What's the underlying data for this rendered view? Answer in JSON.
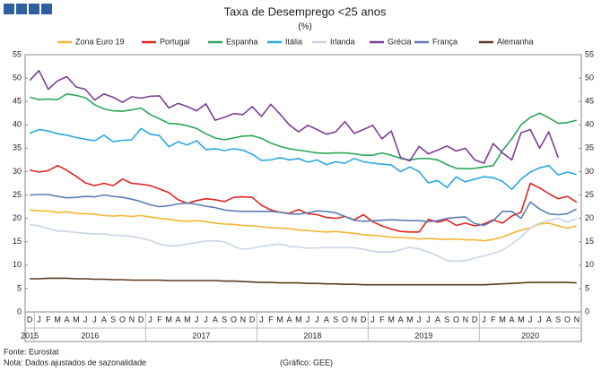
{
  "chart_data": {
    "type": "line",
    "title": "Taxa de Desemprego <25 anos",
    "subtitle": "(%)",
    "categories": [
      "D",
      "J",
      "F",
      "M",
      "A",
      "M",
      "J",
      "J",
      "A",
      "S",
      "O",
      "N",
      "D",
      "J",
      "F",
      "M",
      "A",
      "M",
      "J",
      "J",
      "A",
      "S",
      "O",
      "N",
      "D",
      "J",
      "F",
      "M",
      "A",
      "M",
      "J",
      "J",
      "A",
      "S",
      "O",
      "N",
      "D",
      "J",
      "F",
      "M",
      "A",
      "M",
      "J",
      "J",
      "A",
      "S",
      "O",
      "N",
      "D",
      "J",
      "F",
      "M",
      "A",
      "M",
      "J",
      "J",
      "A",
      "S",
      "O",
      "N"
    ],
    "years": [
      "2015",
      "2016",
      "2017",
      "2018",
      "2019",
      "2020"
    ],
    "ylim": [
      0,
      55
    ],
    "yticks": [
      0,
      5,
      10,
      15,
      20,
      25,
      30,
      35,
      40,
      45,
      50,
      55
    ],
    "grid": false,
    "legend": "top",
    "series": [
      {
        "name": "Zona Euro 19",
        "color": "#f2b632",
        "values": [
          21.8,
          21.6,
          21.6,
          21.3,
          21.4,
          21.1,
          21.0,
          20.9,
          20.6,
          20.5,
          20.6,
          20.4,
          20.6,
          20.3,
          20.0,
          19.8,
          19.5,
          19.4,
          19.5,
          19.3,
          19.0,
          18.8,
          18.7,
          18.5,
          18.4,
          18.2,
          18.0,
          17.9,
          17.8,
          17.5,
          17.4,
          17.2,
          17.1,
          17.2,
          17.0,
          16.8,
          16.5,
          16.4,
          16.2,
          16.0,
          15.9,
          15.8,
          15.6,
          15.7,
          15.6,
          15.5,
          15.6,
          15.4,
          15.4,
          15.2,
          15.5,
          16.0,
          16.8,
          17.5,
          18.0,
          18.8,
          19.0,
          18.4,
          17.9,
          18.4
        ]
      },
      {
        "name": "Portugal",
        "color": "#e02424",
        "values": [
          30.3,
          29.9,
          30.2,
          31.3,
          30.3,
          29.0,
          27.6,
          27.0,
          27.5,
          27.0,
          28.4,
          27.5,
          27.3,
          27.0,
          26.3,
          25.5,
          24.0,
          23.2,
          23.8,
          24.2,
          24.0,
          23.6,
          24.5,
          24.6,
          24.5,
          22.8,
          21.8,
          21.3,
          21.1,
          21.9,
          21.0,
          20.8,
          20.2,
          20.0,
          20.4,
          19.7,
          20.8,
          19.3,
          18.4,
          17.7,
          17.2,
          17.1,
          17.1,
          19.8,
          19.2,
          19.7,
          18.5,
          19.0,
          18.4,
          18.8,
          19.7,
          19.0,
          20.5,
          21.3,
          27.5,
          26.5,
          25.3,
          24.2,
          24.7,
          23.5
        ]
      },
      {
        "name": "Espanha",
        "color": "#2ea65a",
        "values": [
          45.9,
          45.4,
          45.5,
          45.4,
          46.6,
          46.3,
          45.8,
          44.3,
          43.4,
          43.0,
          42.9,
          43.2,
          43.6,
          42.2,
          41.3,
          40.3,
          40.2,
          39.8,
          39.2,
          38.1,
          37.2,
          36.8,
          37.2,
          37.6,
          37.7,
          37.1,
          36.1,
          35.4,
          34.9,
          34.6,
          34.3,
          34.0,
          33.9,
          34.0,
          34.0,
          33.8,
          33.5,
          33.5,
          34.0,
          33.5,
          32.8,
          32.5,
          32.8,
          32.8,
          32.5,
          31.5,
          30.7,
          30.6,
          30.7,
          31.0,
          31.3,
          34.5,
          37.0,
          40.0,
          41.6,
          42.5,
          41.5,
          40.3,
          40.5,
          41.0
        ]
      },
      {
        "name": "Itália",
        "color": "#2aa8e0",
        "values": [
          38.2,
          39.0,
          38.7,
          38.1,
          37.8,
          37.3,
          36.9,
          36.6,
          37.8,
          36.4,
          36.7,
          36.8,
          39.2,
          38.0,
          37.7,
          35.3,
          36.4,
          35.7,
          36.6,
          34.7,
          34.9,
          34.5,
          34.9,
          34.6,
          33.7,
          32.4,
          32.5,
          33.0,
          32.5,
          32.8,
          32.0,
          32.5,
          31.5,
          32.1,
          31.8,
          32.8,
          32.1,
          31.8,
          31.6,
          31.4,
          30.0,
          31.0,
          30.0,
          27.6,
          28.1,
          26.6,
          28.9,
          27.8,
          28.4,
          28.9,
          28.7,
          27.9,
          26.2,
          28.4,
          29.9,
          30.8,
          31.3,
          29.3,
          29.9,
          29.4
        ]
      },
      {
        "name": "Irlanda",
        "color": "#c9d5e6",
        "values": [
          18.7,
          18.4,
          17.8,
          17.3,
          17.2,
          17.0,
          16.8,
          16.7,
          16.7,
          16.4,
          16.3,
          16.2,
          15.8,
          15.3,
          14.5,
          14.1,
          14.2,
          14.5,
          14.8,
          15.2,
          15.2,
          15.0,
          14.0,
          13.4,
          13.6,
          14.0,
          14.3,
          14.5,
          14.0,
          13.9,
          13.6,
          13.7,
          13.8,
          13.7,
          13.8,
          13.7,
          13.4,
          13.0,
          12.8,
          12.8,
          13.3,
          13.8,
          13.5,
          12.8,
          12.0,
          11.0,
          10.8,
          11.0,
          11.5,
          12.0,
          12.5,
          13.2,
          14.5,
          16.0,
          18.0,
          19.0,
          19.5,
          20.0,
          19.2,
          20.0
        ]
      },
      {
        "name": "Grécia",
        "color": "#7b3f98",
        "values": [
          49.5,
          51.6,
          47.6,
          49.4,
          50.3,
          48.1,
          47.6,
          45.3,
          46.6,
          45.9,
          44.8,
          46.0,
          45.7,
          46.1,
          46.2,
          43.6,
          44.6,
          43.9,
          43.0,
          44.5,
          41.0,
          41.6,
          42.4,
          42.2,
          43.9,
          41.8,
          44.4,
          42.3,
          40.0,
          38.5,
          39.9,
          39.0,
          38.0,
          38.5,
          40.7,
          38.2,
          39.0,
          39.9,
          37.0,
          38.7,
          33.0,
          32.3,
          35.4,
          33.8,
          34.6,
          35.5,
          34.4,
          35.0,
          32.5,
          31.8,
          36.0,
          34.0,
          32.5,
          38.3,
          39.0,
          35.0,
          38.5,
          33.0,
          null,
          null
        ]
      },
      {
        "name": "França",
        "color": "#5b7db1",
        "values": [
          25.0,
          25.1,
          25.1,
          24.7,
          24.4,
          24.5,
          24.7,
          24.6,
          25.0,
          24.7,
          24.5,
          24.1,
          23.6,
          22.9,
          22.5,
          22.7,
          23.1,
          23.3,
          23.0,
          22.6,
          22.3,
          21.8,
          21.6,
          21.5,
          21.5,
          21.5,
          21.5,
          21.3,
          21.0,
          20.9,
          21.2,
          21.6,
          21.5,
          21.2,
          20.4,
          19.6,
          19.4,
          19.5,
          19.6,
          19.7,
          19.6,
          19.5,
          19.5,
          19.3,
          19.5,
          20.0,
          20.2,
          20.3,
          18.9,
          18.5,
          19.5,
          21.5,
          21.5,
          20.0,
          23.5,
          22.0,
          21.0,
          20.8,
          21.0,
          22.0
        ]
      },
      {
        "name": "Alemanha",
        "color": "#5a3a1c",
        "values": [
          7.1,
          7.1,
          7.2,
          7.2,
          7.2,
          7.1,
          7.1,
          7.0,
          7.0,
          6.9,
          6.9,
          6.8,
          6.8,
          6.8,
          6.8,
          6.7,
          6.7,
          6.7,
          6.7,
          6.7,
          6.7,
          6.6,
          6.6,
          6.5,
          6.4,
          6.3,
          6.3,
          6.2,
          6.2,
          6.2,
          6.1,
          6.1,
          6.0,
          6.0,
          5.9,
          5.9,
          5.8,
          5.8,
          5.8,
          5.8,
          5.8,
          5.8,
          5.8,
          5.8,
          5.8,
          5.8,
          5.8,
          5.8,
          5.8,
          5.8,
          5.9,
          6.0,
          6.1,
          6.2,
          6.3,
          6.3,
          6.3,
          6.3,
          6.3,
          6.2
        ]
      }
    ],
    "notes": [
      "Fonte: Eurostat",
      "Nota: Dados ajustados de sazonalidade"
    ],
    "credit": "(Gráfico: GEE)"
  }
}
